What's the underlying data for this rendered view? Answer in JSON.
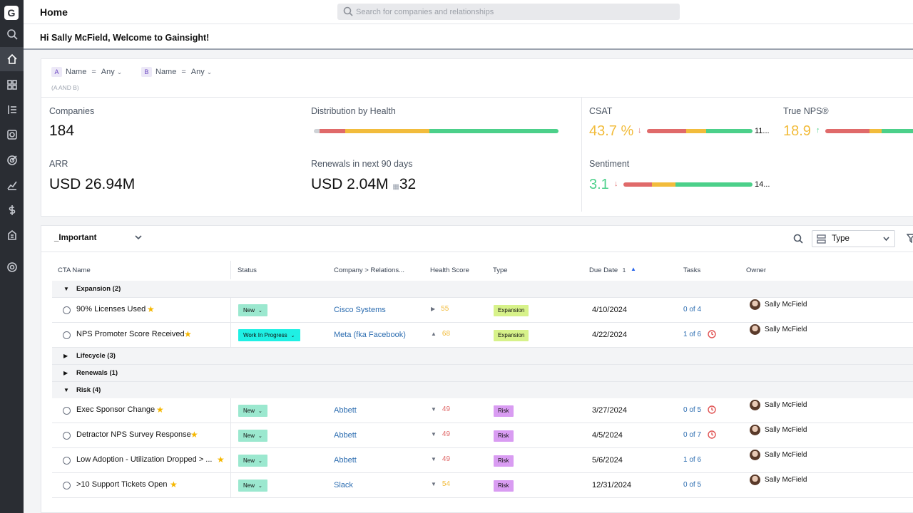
{
  "app": {
    "logo": "G",
    "page_title": "Home",
    "search_placeholder": "Search for companies and relationships",
    "welcome": "Hi Sally McField, Welcome to Gainsight!"
  },
  "nav_icons": [
    "search-icon",
    "home-icon",
    "dashboard-icon",
    "timeline-icon",
    "cockpit-icon",
    "target-icon",
    "analytics-icon",
    "dollar-icon",
    "building-icon",
    "settings-icon"
  ],
  "filters": {
    "a": {
      "tag": "A",
      "field": "Name",
      "op": "=",
      "value": "Any"
    },
    "b": {
      "tag": "B",
      "field": "Name",
      "op": "=",
      "value": "Any"
    },
    "logic": "(A AND B)"
  },
  "metrics": {
    "companies_label": "Companies",
    "companies_value": "184",
    "arr_label": "ARR",
    "arr_value": "USD 26.94M",
    "distribution_label": "Distribution by Health",
    "renewals_label": "Renewals in next 90 days",
    "renewals_value": "USD 2.04M",
    "renewals_count": "32",
    "csat_label": "CSAT",
    "csat_value": "43.7 %",
    "csat_count": "11...",
    "nps_label": "True NPS®",
    "nps_value": "18.9",
    "sentiment_label": "Sentiment",
    "sentiment_value": "3.1",
    "sentiment_count": "14..."
  },
  "colors": {
    "red": "#e06a6a",
    "yellow": "#f2bc3c",
    "green": "#4cd08a",
    "grey": "#cfd2d6",
    "accent_blue": "#2b6cb0"
  },
  "cta": {
    "view": "_Important",
    "type_select": "Type",
    "headers": {
      "name": "CTA Name",
      "status": "Status",
      "company": "Company > Relations...",
      "health": "Health Score",
      "type": "Type",
      "due": "Due Date",
      "due_sort": "1",
      "tasks": "Tasks",
      "owner": "Owner"
    },
    "groups": {
      "expansion": "Expansion (2)",
      "lifecycle": "Lifecycle (3)",
      "renewals": "Renewals (1)",
      "risk": "Risk (4)"
    },
    "rows": [
      {
        "name": "90% Licenses Used",
        "status": "New",
        "company": "Cisco Systems",
        "health": "55",
        "type": "Expansion",
        "due": "4/10/2024",
        "tasks": "0 of 4",
        "owner": "Sally McField"
      },
      {
        "name": "NPS Promoter Score Received",
        "status": "Work In Progress",
        "company": "Meta (fka Facebook)",
        "health": "68",
        "type": "Expansion",
        "due": "4/22/2024",
        "tasks": "1 of 6",
        "owner": "Sally McField"
      },
      {
        "name": "Exec Sponsor Change",
        "status": "New",
        "company": "Abbett",
        "health": "49",
        "type": "Risk",
        "due": "3/27/2024",
        "tasks": "0 of 5",
        "owner": "Sally McField"
      },
      {
        "name": "Detractor NPS Survey Response",
        "status": "New",
        "company": "Abbett",
        "health": "49",
        "type": "Risk",
        "due": "4/5/2024",
        "tasks": "0 of 7",
        "owner": "Sally McField"
      },
      {
        "name": "Low Adoption - Utilization Dropped > ...",
        "status": "New",
        "company": "Abbett",
        "health": "49",
        "type": "Risk",
        "due": "5/6/2024",
        "tasks": "1 of 6",
        "owner": "Sally McField"
      },
      {
        "name": ">10 Support Tickets Open",
        "status": "New",
        "company": "Slack",
        "health": "54",
        "type": "Risk",
        "due": "12/31/2024",
        "tasks": "0 of 5",
        "owner": "Sally McField"
      }
    ]
  }
}
